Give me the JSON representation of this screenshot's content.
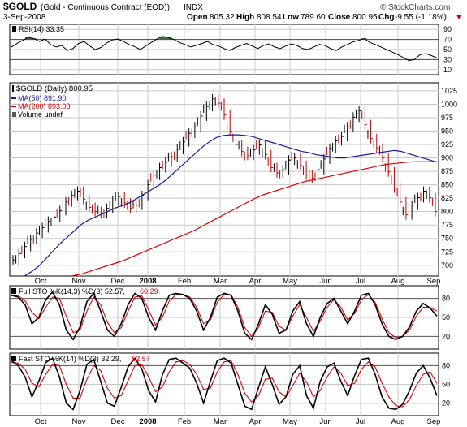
{
  "header": {
    "symbol": "$GOLD",
    "description": "(Gold - Continuous Contract (EOD))",
    "exchange": "INDX",
    "date": "3-Sep-2008",
    "open_label": "Open",
    "open": "805.32",
    "high_label": "High",
    "high": "808.54",
    "low_label": "Low",
    "low": "789.60",
    "close_label": "Close",
    "close": "800.95",
    "chg_label": "Chg",
    "chg": "-9.55 (-1.18%)",
    "chg_arrow": "▼",
    "brand": "© StockCharts.com"
  },
  "colors": {
    "price_bar": "#000000",
    "price_bar_down": "#cc0000",
    "ma50": "#1a1a9a",
    "ma200": "#e00000",
    "rsi_fill": "#3a7a3a",
    "sto_k": "#000000",
    "sto_d": "#e00000",
    "grid": "#c8c8c8"
  },
  "chart_data": [
    {
      "type": "line",
      "panel": "rsi",
      "legend": "RSI(14) 33.35",
      "ylim": [
        0,
        100
      ],
      "yticks": [
        "90",
        "70",
        "50",
        "30",
        "10"
      ],
      "overbought": 70,
      "oversold": 30,
      "series": [
        {
          "name": "RSI(14)",
          "values": [
            55,
            62,
            68,
            74,
            72,
            66,
            71,
            60,
            55,
            58,
            48,
            52,
            62,
            66,
            57,
            50,
            54,
            63,
            69,
            71,
            66,
            60,
            56,
            50,
            57,
            64,
            71,
            76,
            74,
            70,
            64,
            60,
            55,
            58,
            62,
            66,
            60,
            57,
            52,
            48,
            54,
            58,
            62,
            57,
            52,
            58,
            61,
            55,
            52,
            57,
            61,
            58,
            52,
            50,
            55,
            60,
            58,
            52,
            48,
            55,
            60,
            65,
            68,
            72,
            64,
            60,
            55,
            50,
            45,
            40,
            34,
            28,
            30,
            40,
            42,
            38,
            33
          ]
        }
      ]
    },
    {
      "type": "line",
      "panel": "price",
      "legend": [
        "$GOLD (Daily) 800.95",
        "MA(50) 891.90",
        "MA(200) 893.08",
        "Volume undef"
      ],
      "ylim": [
        680,
        1040
      ],
      "yticks": [
        "1025",
        "1000",
        "975",
        "950",
        "925",
        "900",
        "875",
        "850",
        "825",
        "800",
        "775",
        "750",
        "725",
        "700"
      ],
      "x_labels": [
        "Oct",
        "Nov",
        "Dec",
        "2008",
        "Feb",
        "Mar",
        "Apr",
        "May",
        "Jun",
        "Jul",
        "Aug",
        "Sep"
      ],
      "series": [
        {
          "name": "$GOLD (Daily)",
          "values": [
            710,
            722,
            735,
            748,
            760,
            770,
            782,
            790,
            802,
            818,
            830,
            838,
            823,
            808,
            800,
            796,
            806,
            820,
            828,
            816,
            806,
            812,
            830,
            850,
            868,
            882,
            892,
            902,
            916,
            930,
            946,
            958,
            978,
            996,
            1010,
            1002,
            980,
            950,
            925,
            912,
            905,
            915,
            924,
            906,
            882,
            872,
            878,
            896,
            900,
            886,
            868,
            862,
            878,
            898,
            918,
            932,
            940,
            958,
            976,
            988,
            962,
            936,
            918,
            900,
            874,
            844,
            818,
            794,
            812,
            826,
            838,
            826,
            800
          ]
        },
        {
          "name": "MA(50)",
          "values": [
            680,
            688,
            698,
            712,
            726,
            740,
            752,
            764,
            776,
            784,
            790,
            796,
            802,
            808,
            812,
            818,
            826,
            834,
            842,
            850,
            860,
            872,
            884,
            896,
            908,
            920,
            930,
            938,
            942,
            943,
            943,
            942,
            940,
            936,
            932,
            928,
            924,
            920,
            916,
            912,
            910,
            906,
            904,
            902,
            900,
            900,
            902,
            904,
            906,
            908,
            910,
            912,
            914,
            912,
            908,
            904,
            900,
            896,
            892
          ]
        },
        {
          "name": "MA(200)",
          "values": [
            680,
            684,
            690,
            696,
            702,
            708,
            716,
            724,
            732,
            740,
            748,
            756,
            764,
            774,
            784,
            794,
            804,
            814,
            824,
            832,
            838,
            844,
            850,
            856,
            860,
            864,
            868,
            872,
            876,
            880,
            884,
            888,
            890,
            892,
            893,
            893,
            893
          ]
        }
      ]
    },
    {
      "type": "line",
      "panel": "full_sto",
      "legend": [
        "Full STO %K(14,3) %D(3) 52.57,",
        "60.29"
      ],
      "ylim": [
        0,
        100
      ],
      "yticks": [
        "80",
        "50",
        "20"
      ],
      "series": [
        {
          "name": "%K(14,3)",
          "values": [
            85,
            82,
            70,
            40,
            50,
            78,
            90,
            70,
            30,
            15,
            35,
            75,
            88,
            60,
            30,
            20,
            40,
            70,
            88,
            80,
            50,
            30,
            60,
            85,
            88,
            86,
            80,
            60,
            30,
            50,
            82,
            88,
            85,
            60,
            25,
            15,
            40,
            70,
            55,
            25,
            30,
            60,
            75,
            40,
            20,
            50,
            72,
            80,
            60,
            40,
            60,
            85,
            88,
            70,
            40,
            20,
            15,
            20,
            35,
            60,
            72,
            65,
            52
          ]
        },
        {
          "name": "%D(3)",
          "values": [
            84,
            84,
            76,
            58,
            48,
            66,
            82,
            80,
            52,
            26,
            30,
            60,
            82,
            70,
            42,
            26,
            34,
            60,
            82,
            84,
            62,
            38,
            50,
            76,
            86,
            86,
            82,
            66,
            40,
            46,
            74,
            86,
            86,
            66,
            34,
            20,
            34,
            60,
            58,
            36,
            30,
            52,
            70,
            50,
            28,
            44,
            66,
            78,
            66,
            46,
            56,
            78,
            86,
            74,
            48,
            26,
            18,
            20,
            30,
            52,
            66,
            66,
            60
          ]
        }
      ]
    },
    {
      "type": "line",
      "panel": "fast_sto",
      "legend": [
        "Fast STO %K(14) %D(3) 32.29,",
        "52.57"
      ],
      "ylim": [
        0,
        100
      ],
      "yticks": [
        "80",
        "50",
        "20"
      ],
      "x_labels": [
        "Oct",
        "Nov",
        "Dec",
        "2008",
        "Feb",
        "Mar",
        "Apr",
        "May",
        "Jun",
        "Jul",
        "Aug",
        "Sep"
      ],
      "series": [
        {
          "name": "%K(14)",
          "values": [
            88,
            80,
            62,
            30,
            55,
            85,
            92,
            62,
            20,
            10,
            40,
            82,
            90,
            55,
            20,
            15,
            45,
            78,
            92,
            75,
            40,
            22,
            65,
            90,
            92,
            84,
            76,
            52,
            20,
            55,
            88,
            92,
            84,
            50,
            15,
            10,
            45,
            78,
            50,
            18,
            30,
            66,
            80,
            32,
            12,
            55,
            78,
            84,
            55,
            32,
            64,
            90,
            92,
            66,
            30,
            12,
            10,
            18,
            40,
            68,
            80,
            60,
            32
          ]
        },
        {
          "name": "%D(3)",
          "values": [
            85,
            84,
            74,
            52,
            46,
            66,
            82,
            80,
            50,
            28,
            28,
            58,
            80,
            72,
            44,
            28,
            32,
            56,
            80,
            82,
            62,
            38,
            46,
            70,
            86,
            88,
            82,
            66,
            42,
            44,
            70,
            86,
            88,
            66,
            36,
            22,
            32,
            58,
            60,
            38,
            30,
            48,
            68,
            54,
            30,
            40,
            62,
            78,
            68,
            48,
            52,
            74,
            86,
            78,
            52,
            30,
            16,
            14,
            26,
            48,
            66,
            70,
            52
          ]
        }
      ]
    }
  ]
}
